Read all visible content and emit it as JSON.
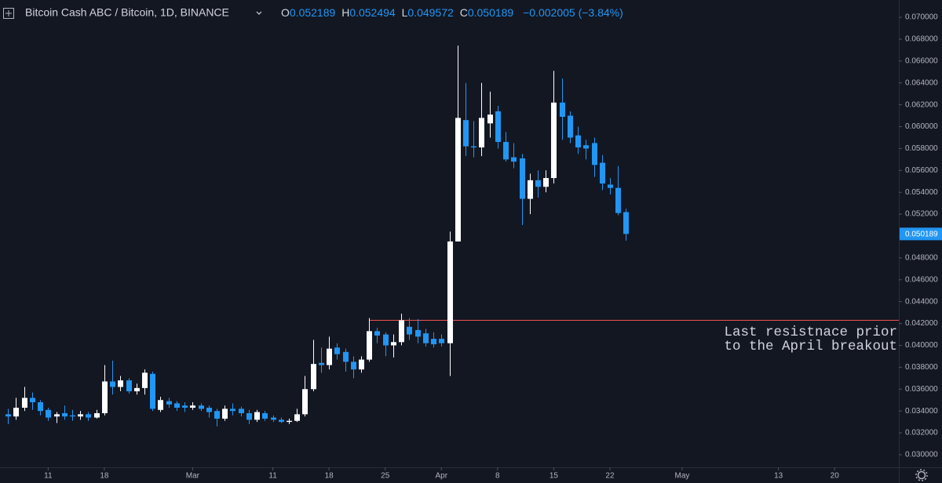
{
  "chart_data": {
    "type": "candlestick",
    "title": "Bitcoin Cash ABC / Bitcoin, 1D, BINANCE",
    "ohlc_labels": [
      "O",
      "H",
      "L",
      "C"
    ],
    "change": "−0.002005 (−3.84%)",
    "up_color": "#ffffff",
    "down_color": "#2196f3",
    "grid": false,
    "x": [
      "02-06",
      "02-07",
      "02-08",
      "02-09",
      "02-10",
      "02-11",
      "02-12",
      "02-13",
      "02-14",
      "02-15",
      "02-16",
      "02-17",
      "02-18",
      "02-19",
      "02-20",
      "02-21",
      "02-22",
      "02-23",
      "02-24",
      "02-25",
      "02-26",
      "02-27",
      "02-28",
      "03-01",
      "03-02",
      "03-03",
      "03-04",
      "03-05",
      "03-06",
      "03-07",
      "03-08",
      "03-09",
      "03-10",
      "03-11",
      "03-12",
      "03-13",
      "03-14",
      "03-15",
      "03-16",
      "03-17",
      "03-18",
      "03-19",
      "03-20",
      "03-21",
      "03-22",
      "03-23",
      "03-24",
      "03-25",
      "03-26",
      "03-27",
      "03-28",
      "03-29",
      "03-30",
      "03-31",
      "04-01",
      "04-02",
      "04-03",
      "04-04",
      "04-05",
      "04-06",
      "04-07",
      "04-08",
      "04-09",
      "04-10",
      "04-11",
      "04-12",
      "04-13",
      "04-14",
      "04-15",
      "04-16",
      "04-17",
      "04-18",
      "04-19",
      "04-20",
      "04-21",
      "04-22",
      "04-23",
      "04-24"
    ],
    "open": [
      0.0337,
      0.0335,
      0.0343,
      0.0352,
      0.0348,
      0.0341,
      0.0335,
      0.0338,
      0.0336,
      0.0335,
      0.0337,
      0.0334,
      0.0338,
      0.0367,
      0.0362,
      0.0368,
      0.0358,
      0.0361,
      0.0374,
      0.0341,
      0.0349,
      0.0347,
      0.0345,
      0.0343,
      0.0345,
      0.0343,
      0.034,
      0.0333,
      0.0342,
      0.0342,
      0.0338,
      0.0332,
      0.0338,
      0.0334,
      0.0332,
      0.033,
      0.0331,
      0.0337,
      0.036,
      0.0384,
      0.0382,
      0.0398,
      0.0394,
      0.0385,
      0.0378,
      0.0387,
      0.0413,
      0.041,
      0.04,
      0.0403,
      0.0417,
      0.0414,
      0.0411,
      0.0406,
      0.0406,
      0.0402,
      0.0495,
      0.0606,
      0.0582,
      0.0581,
      0.0603,
      0.0614,
      0.0586,
      0.0572,
      0.0571,
      0.0534,
      0.0551,
      0.0545,
      0.0553,
      0.0622,
      0.061,
      0.0592,
      0.0583,
      0.0585,
      0.0567,
      0.0547,
      0.0544,
      0.052189
    ],
    "high": [
      0.0342,
      0.0352,
      0.0362,
      0.0357,
      0.035,
      0.0343,
      0.0339,
      0.0345,
      0.0341,
      0.034,
      0.0339,
      0.0341,
      0.0382,
      0.0386,
      0.0372,
      0.037,
      0.0365,
      0.0378,
      0.0376,
      0.0353,
      0.0352,
      0.0349,
      0.0348,
      0.0348,
      0.0347,
      0.0345,
      0.0342,
      0.0345,
      0.0347,
      0.0344,
      0.0341,
      0.0341,
      0.034,
      0.0336,
      0.0334,
      0.0333,
      0.0342,
      0.0372,
      0.0405,
      0.0398,
      0.0408,
      0.0402,
      0.0397,
      0.039,
      0.039,
      0.0425,
      0.0416,
      0.0412,
      0.041,
      0.0429,
      0.0425,
      0.0424,
      0.0415,
      0.0412,
      0.041,
      0.0504,
      0.0674,
      0.064,
      0.0605,
      0.064,
      0.0632,
      0.0619,
      0.0595,
      0.0585,
      0.0575,
      0.0557,
      0.056,
      0.056,
      0.0651,
      0.0644,
      0.0614,
      0.06,
      0.0588,
      0.059,
      0.0574,
      0.0553,
      0.0564,
      0.052494
    ],
    "low": [
      0.0328,
      0.0332,
      0.034,
      0.0341,
      0.0336,
      0.0331,
      0.0329,
      0.0332,
      0.0331,
      0.0332,
      0.0331,
      0.0333,
      0.0336,
      0.0355,
      0.0358,
      0.0356,
      0.0355,
      0.0355,
      0.034,
      0.0339,
      0.0343,
      0.034,
      0.0339,
      0.0341,
      0.034,
      0.0334,
      0.0326,
      0.0331,
      0.0336,
      0.0335,
      0.0328,
      0.033,
      0.0331,
      0.033,
      0.0329,
      0.0328,
      0.033,
      0.0335,
      0.0358,
      0.0375,
      0.0378,
      0.0387,
      0.0376,
      0.037,
      0.0375,
      0.0385,
      0.0402,
      0.039,
      0.0389,
      0.04,
      0.0405,
      0.0402,
      0.0399,
      0.0398,
      0.0399,
      0.0372,
      0.0495,
      0.0573,
      0.0572,
      0.0573,
      0.059,
      0.058,
      0.0568,
      0.0562,
      0.051,
      0.052,
      0.0535,
      0.054,
      0.0548,
      0.0588,
      0.0585,
      0.0575,
      0.057,
      0.0554,
      0.0542,
      0.0538,
      0.0519,
      0.049572
    ],
    "close": [
      0.0335,
      0.0343,
      0.0352,
      0.0348,
      0.034,
      0.0334,
      0.0337,
      0.0335,
      0.0335,
      0.0337,
      0.0334,
      0.0338,
      0.0367,
      0.0362,
      0.0368,
      0.0358,
      0.0361,
      0.0375,
      0.0342,
      0.035,
      0.0346,
      0.0343,
      0.0343,
      0.0345,
      0.0342,
      0.0339,
      0.0333,
      0.0342,
      0.034,
      0.0338,
      0.0332,
      0.0339,
      0.0333,
      0.0332,
      0.033,
      0.0331,
      0.0337,
      0.036,
      0.0383,
      0.0382,
      0.0397,
      0.0392,
      0.0385,
      0.0378,
      0.0387,
      0.0413,
      0.0409,
      0.04,
      0.0403,
      0.0423,
      0.041,
      0.0408,
      0.0402,
      0.0401,
      0.0402,
      0.0495,
      0.0608,
      0.0582,
      0.0581,
      0.0608,
      0.0611,
      0.0586,
      0.057,
      0.0568,
      0.0534,
      0.0551,
      0.0545,
      0.0553,
      0.0622,
      0.0609,
      0.059,
      0.0581,
      0.058,
      0.0565,
      0.0548,
      0.0544,
      0.0521,
      0.050189
    ],
    "xlim": [
      "02-05",
      "05-28"
    ],
    "xticks": [
      {
        "value": "02-11",
        "label": "11"
      },
      {
        "value": "02-18",
        "label": "18"
      },
      {
        "value": "03-01",
        "label": "Mar"
      },
      {
        "value": "03-11",
        "label": "11"
      },
      {
        "value": "03-18",
        "label": "18"
      },
      {
        "value": "03-25",
        "label": "25"
      },
      {
        "value": "04-01",
        "label": "Apr"
      },
      {
        "value": "04-08",
        "label": "8"
      },
      {
        "value": "04-15",
        "label": "15"
      },
      {
        "value": "04-22",
        "label": "22"
      },
      {
        "value": "05-01",
        "label": "May"
      },
      {
        "value": "05-13",
        "label": "13"
      },
      {
        "value": "05-20",
        "label": "20"
      }
    ],
    "ylim": [
      0.02885,
      0.07158
    ],
    "yticks": [
      {
        "value": 0.03,
        "label": "0.030000"
      },
      {
        "value": 0.032,
        "label": "0.032000"
      },
      {
        "value": 0.034,
        "label": "0.034000"
      },
      {
        "value": 0.036,
        "label": "0.036000"
      },
      {
        "value": 0.038,
        "label": "0.038000"
      },
      {
        "value": 0.04,
        "label": "0.040000"
      },
      {
        "value": 0.042,
        "label": "0.042000"
      },
      {
        "value": 0.044,
        "label": "0.044000"
      },
      {
        "value": 0.046,
        "label": "0.046000"
      },
      {
        "value": 0.048,
        "label": "0.048000"
      },
      {
        "value": 0.05,
        "label": "0.050000"
      },
      {
        "value": 0.052,
        "label": "0.052000"
      },
      {
        "value": 0.054,
        "label": "0.054000"
      },
      {
        "value": 0.056,
        "label": "0.056000"
      },
      {
        "value": 0.058,
        "label": "0.058000"
      },
      {
        "value": 0.06,
        "label": "0.060000"
      },
      {
        "value": 0.062,
        "label": "0.062000"
      },
      {
        "value": 0.064,
        "label": "0.064000"
      },
      {
        "value": 0.066,
        "label": "0.066000"
      },
      {
        "value": 0.068,
        "label": "0.068000"
      },
      {
        "value": 0.07,
        "label": "0.070000"
      }
    ],
    "resistance": {
      "value": 0.04233,
      "from": "03-23",
      "color": "#ef5350"
    },
    "annotation": [
      "Last resistnace prior",
      "to the April breakout"
    ]
  }
}
